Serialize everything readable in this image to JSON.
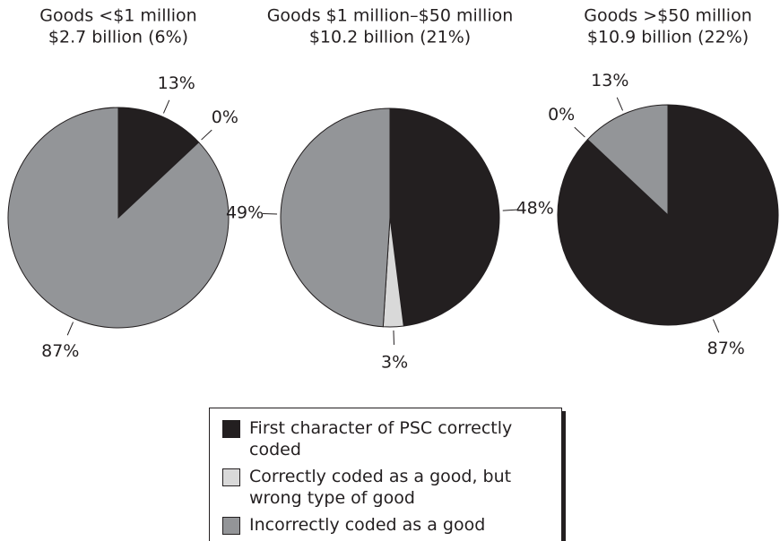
{
  "chart_data": [
    {
      "type": "pie",
      "title": "Goods <$1 million",
      "subtitle": "$2.7 billion (6%)",
      "values": [
        13,
        0,
        87
      ],
      "value_labels": [
        "13%",
        "0%",
        "87%"
      ]
    },
    {
      "type": "pie",
      "title": "Goods $1 million–$50 million",
      "subtitle": "$10.2 billion (21%)",
      "values": [
        48,
        3,
        49
      ],
      "value_labels": [
        "48%",
        "3%",
        "49%"
      ]
    },
    {
      "type": "pie",
      "title": "Goods >$50 million",
      "subtitle": "$10.9 billion (22%)",
      "values": [
        87,
        0,
        13
      ],
      "value_labels": [
        "87%",
        "0%",
        "13%"
      ]
    }
  ],
  "legend": {
    "labels": [
      "First character of PSC correctly coded",
      "Correctly coded as a good, but wrong type of good",
      "Incorrectly coded as a good"
    ],
    "colors": [
      "#231f20",
      "#d9d9d9",
      "#939598"
    ]
  }
}
